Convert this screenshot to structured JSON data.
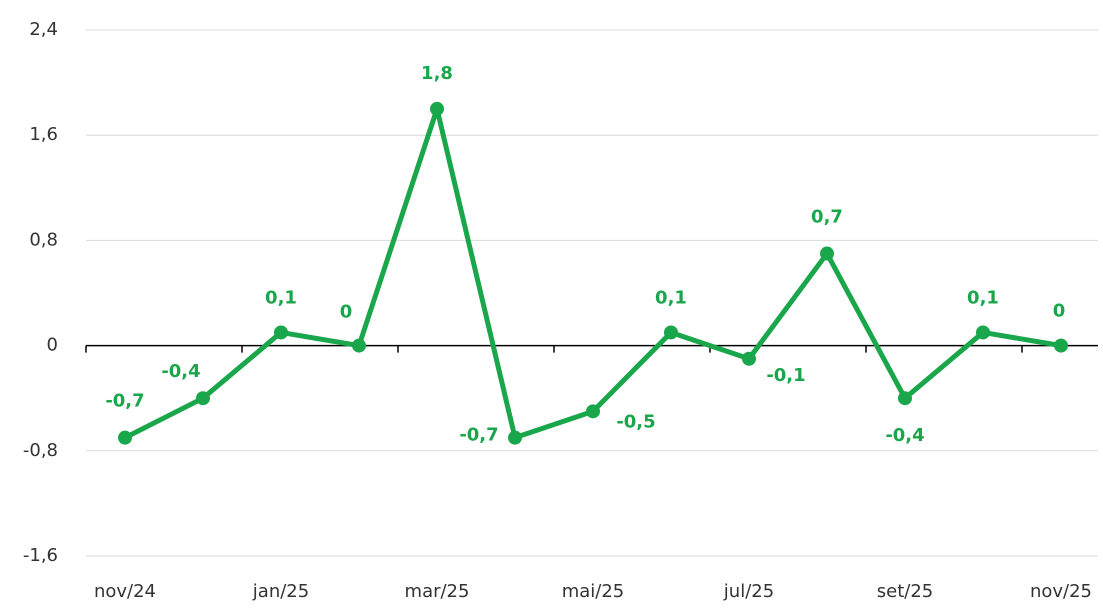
{
  "chart_data": {
    "type": "line",
    "categories": [
      "nov/24",
      null,
      "jan/25",
      null,
      "mar/25",
      null,
      "mai/25",
      null,
      "jul/25",
      null,
      "set/25",
      null,
      "nov/25"
    ],
    "series": [
      {
        "color": "#1aa64a",
        "values": [
          -0.7,
          -0.4,
          0.1,
          0,
          1.8,
          -0.7,
          -0.5,
          0.1,
          -0.1,
          0.7,
          -0.4,
          0.1,
          0
        ],
        "value_labels": [
          "-0,7",
          "-0,4",
          "0,1",
          "0",
          "1,8",
          "-0,7",
          "-0,5",
          "0,1",
          "-0,1",
          "0,7",
          "-0,4",
          "0,1",
          "0"
        ]
      }
    ],
    "ylim": [
      -1.6,
      2.4
    ],
    "yticks": [
      {
        "value": -1.6,
        "label": "-1,6"
      },
      {
        "value": -0.8,
        "label": "-0,8"
      },
      0,
      {
        "value": 0.8,
        "label": "0,8"
      },
      {
        "value": 1.6,
        "label": "1,6"
      },
      {
        "value": 2.4,
        "label": "2,4"
      }
    ],
    "grid": true
  }
}
